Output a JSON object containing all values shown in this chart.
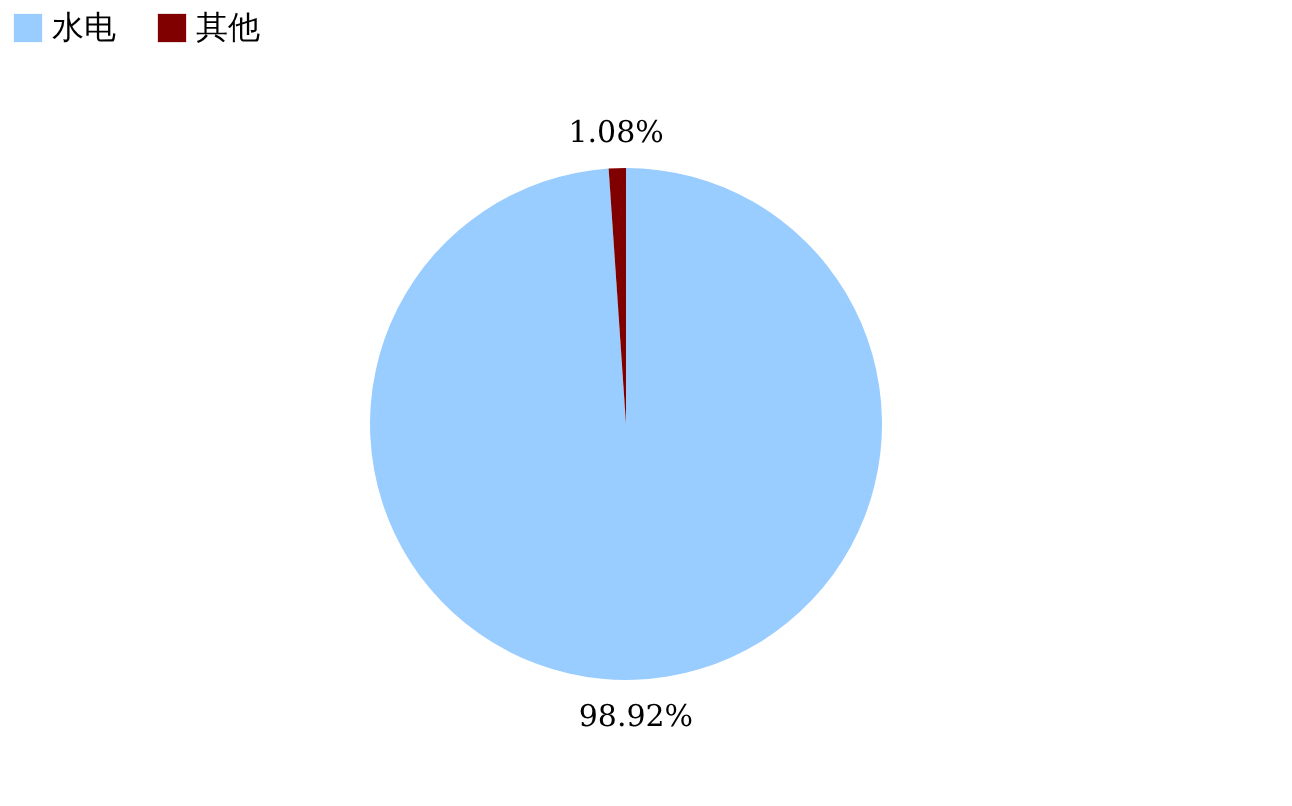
{
  "chart_data": {
    "type": "pie",
    "categories": [
      "水电",
      "其他"
    ],
    "values": [
      98.92,
      1.08
    ],
    "colors": [
      "#99ccff",
      "#800000"
    ],
    "value_labels": [
      "98.92%",
      "1.08%"
    ],
    "legend": "top"
  }
}
